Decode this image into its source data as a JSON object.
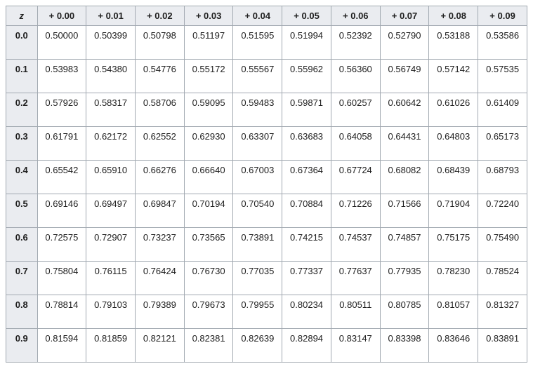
{
  "table": {
    "type": "table",
    "header_bg": "#eaecf0",
    "cell_bg": "#ffffff",
    "border_color": "#a2a9b1",
    "font_family": "Arial",
    "header_fontsize": 13,
    "cell_fontsize": 13,
    "corner_label": "z",
    "col_headers": [
      "+ 0.00",
      "+ 0.01",
      "+ 0.02",
      "+ 0.03",
      "+ 0.04",
      "+ 0.05",
      "+ 0.06",
      "+ 0.07",
      "+ 0.08",
      "+ 0.09"
    ],
    "row_headers": [
      "0.0",
      "0.1",
      "0.2",
      "0.3",
      "0.4",
      "0.5",
      "0.6",
      "0.7",
      "0.8",
      "0.9"
    ],
    "rows": [
      [
        "0.50000",
        "0.50399",
        "0.50798",
        "0.51197",
        "0.51595",
        "0.51994",
        "0.52392",
        "0.52790",
        "0.53188",
        "0.53586"
      ],
      [
        "0.53983",
        "0.54380",
        "0.54776",
        "0.55172",
        "0.55567",
        "0.55962",
        "0.56360",
        "0.56749",
        "0.57142",
        "0.57535"
      ],
      [
        "0.57926",
        "0.58317",
        "0.58706",
        "0.59095",
        "0.59483",
        "0.59871",
        "0.60257",
        "0.60642",
        "0.61026",
        "0.61409"
      ],
      [
        "0.61791",
        "0.62172",
        "0.62552",
        "0.62930",
        "0.63307",
        "0.63683",
        "0.64058",
        "0.64431",
        "0.64803",
        "0.65173"
      ],
      [
        "0.65542",
        "0.65910",
        "0.66276",
        "0.66640",
        "0.67003",
        "0.67364",
        "0.67724",
        "0.68082",
        "0.68439",
        "0.68793"
      ],
      [
        "0.69146",
        "0.69497",
        "0.69847",
        "0.70194",
        "0.70540",
        "0.70884",
        "0.71226",
        "0.71566",
        "0.71904",
        "0.72240"
      ],
      [
        "0.72575",
        "0.72907",
        "0.73237",
        "0.73565",
        "0.73891",
        "0.74215",
        "0.74537",
        "0.74857",
        "0.75175",
        "0.75490"
      ],
      [
        "0.75804",
        "0.76115",
        "0.76424",
        "0.76730",
        "0.77035",
        "0.77337",
        "0.77637",
        "0.77935",
        "0.78230",
        "0.78524"
      ],
      [
        "0.78814",
        "0.79103",
        "0.79389",
        "0.79673",
        "0.79955",
        "0.80234",
        "0.80511",
        "0.80785",
        "0.81057",
        "0.81327"
      ],
      [
        "0.81594",
        "0.81859",
        "0.82121",
        "0.82381",
        "0.82639",
        "0.82894",
        "0.83147",
        "0.83398",
        "0.83646",
        "0.83891"
      ]
    ]
  }
}
